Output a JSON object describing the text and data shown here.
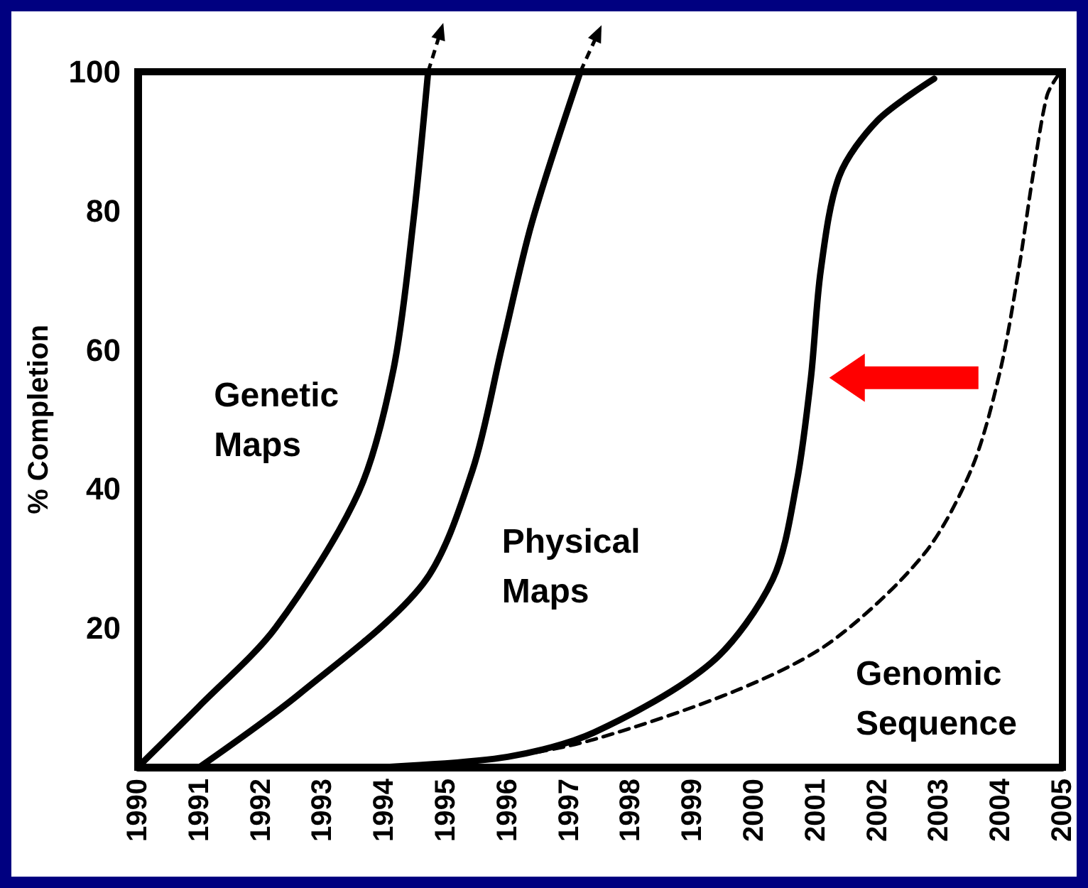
{
  "chart_data": {
    "type": "line",
    "ylabel": "% Completion",
    "xlim": [
      1990,
      2005
    ],
    "xticks": [
      1990,
      1991,
      1992,
      1993,
      1994,
      1995,
      1996,
      1997,
      1998,
      1999,
      2000,
      2001,
      2002,
      2003,
      2004,
      2005
    ],
    "ylim": [
      0,
      100
    ],
    "yticks": [
      20,
      40,
      60,
      80,
      100
    ],
    "grid": false,
    "marker": "none",
    "series": [
      {
        "name": "Genetic Maps",
        "color": "#000000",
        "line_style": "solid",
        "x": [
          1990,
          1991,
          1992.23,
          1993.58,
          1994.15,
          1994.47,
          1994.71
        ],
        "values": [
          0,
          8.8,
          20,
          39.5,
          57.3,
          78.5,
          100
        ]
      },
      {
        "name": "Physical Maps",
        "color": "#000000",
        "line_style": "solid",
        "x": [
          1991,
          1992.63,
          1994.63,
          1995.43,
          1995.91,
          1996.39,
          1997.18
        ],
        "values": [
          0,
          10.6,
          26.4,
          42.7,
          60.5,
          78.2,
          100
        ]
      },
      {
        "color": "#000000",
        "line_style": "solid",
        "x": [
          1994,
          1996,
          1997.4,
          1999.3,
          2000.3,
          2000.69,
          2000.92,
          2001.08,
          2001.38,
          2002,
          2002.92
        ],
        "values": [
          0,
          1.5,
          5,
          15,
          27,
          41,
          56,
          71.5,
          85,
          93,
          99
        ]
      },
      {
        "name": "Genomic Sequence",
        "color": "#000000",
        "line_style": "dashed",
        "x": [
          1994,
          1996,
          1997.4,
          1999.7,
          2001.24,
          2002.75,
          2003.53,
          2003.99,
          2004.29,
          2004.52,
          2004.75,
          2004.93
        ],
        "values": [
          0,
          1.5,
          4,
          11,
          18,
          30.6,
          43,
          57,
          71.5,
          85,
          96.6,
          99.5
        ]
      }
    ]
  }
}
